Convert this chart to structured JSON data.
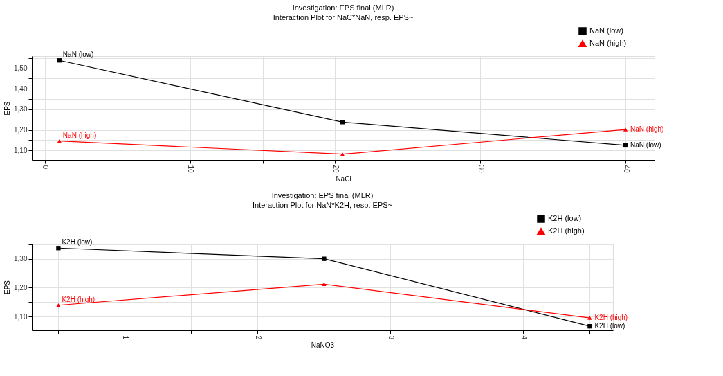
{
  "chart_data": [
    {
      "type": "line",
      "title": "Investigation: EPS final (MLR)",
      "subtitle": "Interaction Plot for NaC*NaN, resp. EPS~",
      "xlabel": "NaCl",
      "ylabel": "EPS",
      "series": [
        {
          "name": "NaN (low)",
          "color": "#000000",
          "marker": "square",
          "x": [
            1,
            20.5,
            40
          ],
          "values": [
            1.538,
            1.238,
            1.125
          ]
        },
        {
          "name": "NaN (high)",
          "color": "#ff0000",
          "marker": "triangle",
          "x": [
            1,
            20.5,
            40
          ],
          "values": [
            1.146,
            1.082,
            1.202
          ]
        }
      ],
      "xlim": [
        -0.9,
        42
      ],
      "xticks": [
        0,
        {
          "value": 5,
          "label": null
        },
        10,
        {
          "value": 15,
          "label": null
        },
        20,
        {
          "value": 25,
          "label": null
        },
        30,
        {
          "value": 35,
          "label": null
        },
        40
      ],
      "ylim": [
        1.054,
        1.559
      ],
      "yticks": [
        {
          "value": 1.1,
          "label": "1,10"
        },
        {
          "value": 1.15,
          "label": null
        },
        {
          "value": 1.2,
          "label": "1,20"
        },
        {
          "value": 1.25,
          "label": null
        },
        {
          "value": 1.3,
          "label": "1,30"
        },
        {
          "value": 1.35,
          "label": null
        },
        {
          "value": 1.4,
          "label": "1,40"
        },
        {
          "value": 1.45,
          "label": null
        },
        {
          "value": 1.5,
          "label": "1,50"
        },
        {
          "value": 1.55,
          "label": null
        }
      ],
      "grid": true,
      "legend": "top right",
      "line_style": "solid",
      "annotations": [
        {
          "text": "NaN (low)",
          "x": 1,
          "y": 1.538
        },
        {
          "text": "NaN (high)",
          "x": 1,
          "y": 1.146
        },
        {
          "text": "NaN (high)",
          "x": 40,
          "y": 1.202
        },
        {
          "text": "NaN (low)",
          "x": 40,
          "y": 1.125
        }
      ]
    },
    {
      "type": "line",
      "title": "Investigation: EPS final (MLR)",
      "subtitle": "Interaction Plot for NaN*K2H, resp. EPS~",
      "xlabel": "NaNO3",
      "ylabel": "EPS",
      "series": [
        {
          "name": "K2H (low)",
          "color": "#000000",
          "marker": "square",
          "x": [
            0.5,
            2.5,
            4.5
          ],
          "values": [
            1.337,
            1.3,
            1.066
          ]
        },
        {
          "name": "K2H (high)",
          "color": "#ff0000",
          "marker": "triangle",
          "x": [
            0.5,
            2.5,
            4.5
          ],
          "values": [
            1.139,
            1.212,
            1.095
          ]
        }
      ],
      "xlim": [
        0.3,
        4.675
      ],
      "xticks": [
        {
          "value": 0.5,
          "label": null
        },
        1,
        {
          "value": 1.5,
          "label": null
        },
        2,
        {
          "value": 2.5,
          "label": null
        },
        3,
        {
          "value": 3.5,
          "label": null
        },
        4,
        {
          "value": 4.5,
          "label": null
        }
      ],
      "ylim": [
        1.052,
        1.352
      ],
      "yticks": [
        {
          "value": 1.1,
          "label": "1,10"
        },
        {
          "value": 1.15,
          "label": null
        },
        {
          "value": 1.2,
          "label": "1,20"
        },
        {
          "value": 1.25,
          "label": null
        },
        {
          "value": 1.3,
          "label": "1,30"
        },
        {
          "value": 1.35,
          "label": null
        }
      ],
      "grid": true,
      "legend": "top right",
      "line_style": "solid",
      "annotations": [
        {
          "text": "K2H (low)",
          "x": 0.5,
          "y": 1.337
        },
        {
          "text": "K2H (high)",
          "x": 0.5,
          "y": 1.139
        },
        {
          "text": "K2H (high)",
          "x": 4.5,
          "y": 1.095
        },
        {
          "text": "K2H (low)",
          "x": 4.5,
          "y": 1.066
        }
      ]
    }
  ]
}
